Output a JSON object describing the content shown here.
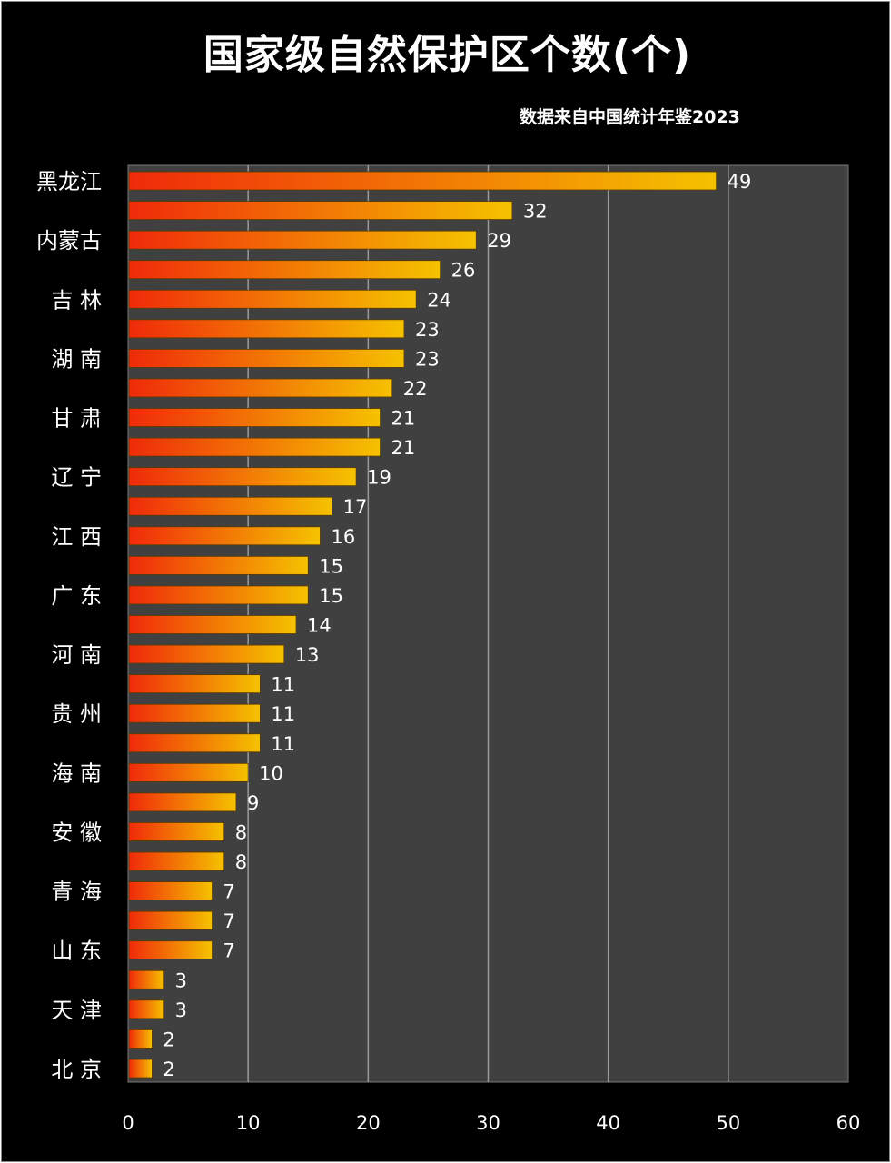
{
  "chart_data": {
    "type": "bar",
    "orientation": "horizontal",
    "title": "国家级自然保护区个数(个)",
    "subtitle": "数据来自中国统计年鉴2023",
    "categories": [
      "黑龙江",
      "",
      "内蒙古",
      "",
      "吉 林",
      "",
      "湖 南",
      "",
      "甘 肃",
      "",
      "辽 宁",
      "",
      "江 西",
      "",
      "广 东",
      "",
      "河 南",
      "",
      "贵 州",
      "",
      "海 南",
      "",
      "安 徽",
      "",
      "青 海",
      "",
      "山 东",
      "",
      "天 津",
      "",
      "北 京"
    ],
    "values": [
      49,
      32,
      29,
      26,
      24,
      23,
      23,
      22,
      21,
      21,
      19,
      17,
      16,
      15,
      15,
      14,
      13,
      11,
      11,
      11,
      10,
      9,
      8,
      8,
      7,
      7,
      7,
      3,
      3,
      2,
      2
    ],
    "xlim": [
      0,
      60
    ],
    "xticks": [
      "0",
      "10",
      "20",
      "30",
      "40",
      "50",
      "60"
    ],
    "grid": true,
    "colors": {
      "bar_start": "#f02a0a",
      "bar_end": "#f5c200",
      "plot_bg": "#404040",
      "grid": "#9a9a9a",
      "background": "#000000",
      "text": "#ffffff"
    }
  }
}
